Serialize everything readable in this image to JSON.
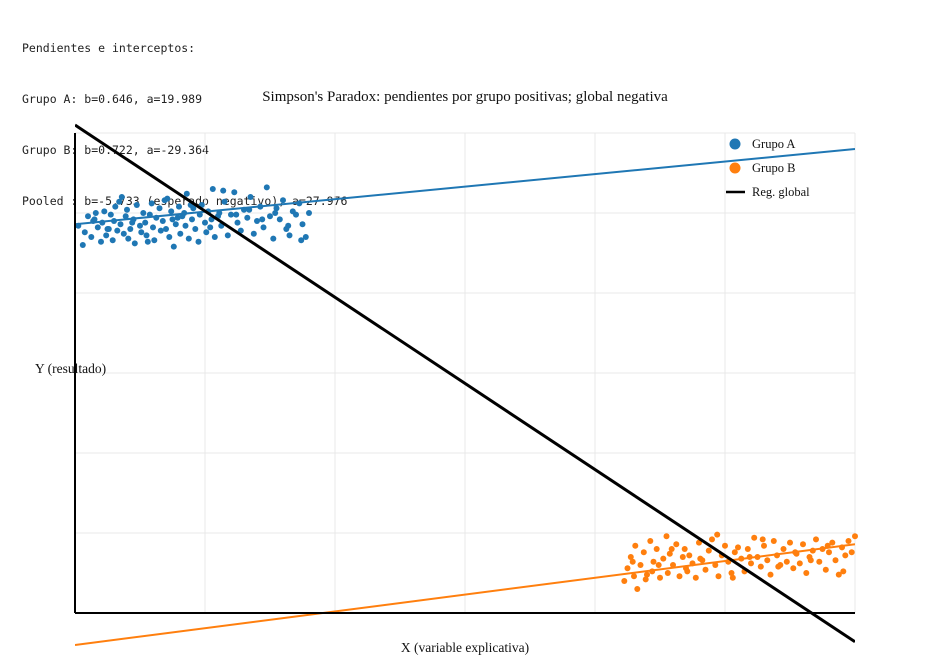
{
  "info": {
    "heading": "Pendientes e interceptos:",
    "lines": [
      "Grupo A: b=0.646, a=19.989",
      "Grupo B: b=0.722, a=-29.364",
      "Pooled : b=-5.733 (esperado negativo), a=27.976"
    ]
  },
  "chart_data": {
    "type": "scatter",
    "title": "Simpson's Paradox: pendientes por grupo positivas; global negativa",
    "xlabel": "X (variable explicativa)",
    "ylabel": "Y (resultado)",
    "xlim": [
      0,
      12
    ],
    "ylim": [
      -2,
      28
    ],
    "grid": true,
    "legend_position": "top-right",
    "tick_labels_shown": false,
    "colors": {
      "group_a": "#1f77b4",
      "group_b": "#ff7f0e",
      "global": "#000000"
    },
    "legend": [
      "Grupo A",
      "Grupo B",
      "Reg. global"
    ],
    "series": [
      {
        "name": "Grupo A",
        "kind": "points",
        "x": [
          0.05,
          0.15,
          0.2,
          0.25,
          0.3,
          0.32,
          0.35,
          0.4,
          0.42,
          0.45,
          0.48,
          0.5,
          0.55,
          0.58,
          0.6,
          0.62,
          0.65,
          0.7,
          0.72,
          0.75,
          0.78,
          0.8,
          0.82,
          0.85,
          0.9,
          0.92,
          0.95,
          1.0,
          1.02,
          1.05,
          1.08,
          1.1,
          1.15,
          1.18,
          1.2,
          1.22,
          1.25,
          1.3,
          1.32,
          1.35,
          1.38,
          1.4,
          1.45,
          1.48,
          1.5,
          1.52,
          1.55,
          1.6,
          1.62,
          1.65,
          1.68,
          1.7,
          1.72,
          1.75,
          1.8,
          1.82,
          1.85,
          1.9,
          1.92,
          1.95,
          2.0,
          2.02,
          2.05,
          2.1,
          2.12,
          2.15,
          2.2,
          2.22,
          2.25,
          2.3,
          2.35,
          2.4,
          2.45,
          2.5,
          2.55,
          2.6,
          2.65,
          2.7,
          2.75,
          2.8,
          2.85,
          2.9,
          2.95,
          3.0,
          3.05,
          3.1,
          3.15,
          3.2,
          3.25,
          3.3,
          3.35,
          3.4,
          3.45,
          3.5,
          3.55,
          3.6,
          0.12,
          0.28,
          0.52,
          0.68,
          0.88,
          1.12,
          1.42,
          1.58,
          1.78,
          2.08,
          2.28,
          2.48,
          2.68,
          2.88,
          3.08,
          3.28,
          3.48
        ],
        "y": [
          22.2,
          21.8,
          22.8,
          21.5,
          22.6,
          23.0,
          22.1,
          21.2,
          22.4,
          23.1,
          21.6,
          22.0,
          22.9,
          21.3,
          22.5,
          23.4,
          21.9,
          22.3,
          24.0,
          21.7,
          22.8,
          23.2,
          21.4,
          22.0,
          22.6,
          21.1,
          23.5,
          22.2,
          21.8,
          23.0,
          22.4,
          21.6,
          22.9,
          23.6,
          22.1,
          21.3,
          22.7,
          23.3,
          21.9,
          22.5,
          23.8,
          22.0,
          21.5,
          23.1,
          22.6,
          20.9,
          22.3,
          23.4,
          21.7,
          22.8,
          23.0,
          22.2,
          24.2,
          21.4,
          22.6,
          23.3,
          22.0,
          21.2,
          22.9,
          23.5,
          22.4,
          21.8,
          23.1,
          22.6,
          24.5,
          21.5,
          22.8,
          23.0,
          22.2,
          23.7,
          21.6,
          22.9,
          24.3,
          22.4,
          21.9,
          23.2,
          22.7,
          24.0,
          21.7,
          22.5,
          23.4,
          22.1,
          24.6,
          22.8,
          21.4,
          23.3,
          22.6,
          23.8,
          22.0,
          21.6,
          23.1,
          22.9,
          23.6,
          22.3,
          21.5,
          23.0,
          21.0,
          22.5,
          22.0,
          23.7,
          22.4,
          21.2,
          23.9,
          22.7,
          23.5,
          22.1,
          24.4,
          22.9,
          23.2,
          22.6,
          23.0,
          22.2,
          21.3
        ],
        "fit": {
          "slope": 0.646,
          "intercept": 19.989
        }
      },
      {
        "name": "Grupo B",
        "kind": "points",
        "x": [
          8.45,
          8.5,
          8.55,
          8.6,
          8.62,
          8.65,
          8.7,
          8.75,
          8.8,
          8.85,
          8.88,
          8.9,
          8.95,
          9.0,
          9.05,
          9.1,
          9.12,
          9.15,
          9.2,
          9.25,
          9.3,
          9.35,
          9.38,
          9.4,
          9.45,
          9.5,
          9.55,
          9.6,
          9.65,
          9.7,
          9.75,
          9.8,
          9.85,
          9.9,
          9.95,
          10.0,
          10.05,
          10.1,
          10.15,
          10.2,
          10.25,
          10.3,
          10.35,
          10.4,
          10.45,
          10.5,
          10.55,
          10.6,
          10.65,
          10.7,
          10.75,
          10.8,
          10.85,
          10.9,
          10.95,
          11.0,
          11.05,
          11.1,
          11.15,
          11.2,
          11.25,
          11.3,
          11.35,
          11.4,
          11.45,
          11.5,
          11.55,
          11.6,
          11.65,
          11.7,
          11.75,
          11.8,
          11.85,
          11.9,
          11.95,
          12.0,
          8.58,
          8.78,
          8.98,
          9.18,
          9.42,
          9.62,
          9.88,
          10.12,
          10.38,
          10.58,
          10.82,
          11.08,
          11.32,
          11.58,
          11.82
        ],
        "y": [
          0.0,
          0.8,
          1.5,
          0.3,
          2.2,
          -0.5,
          1.0,
          1.8,
          0.4,
          2.5,
          0.6,
          1.2,
          2.0,
          0.2,
          1.4,
          2.8,
          0.5,
          1.7,
          1.0,
          2.3,
          0.3,
          1.5,
          2.0,
          0.8,
          1.6,
          1.1,
          0.2,
          2.4,
          1.3,
          0.7,
          1.9,
          2.6,
          1.0,
          0.3,
          1.6,
          2.2,
          1.2,
          0.5,
          1.8,
          2.1,
          1.4,
          0.6,
          2.0,
          1.1,
          2.7,
          1.5,
          0.9,
          2.2,
          1.3,
          0.4,
          2.5,
          1.6,
          1.0,
          2.0,
          1.2,
          2.4,
          0.8,
          1.7,
          1.1,
          2.3,
          0.5,
          1.5,
          1.9,
          2.6,
          1.2,
          2.0,
          0.7,
          1.8,
          2.4,
          1.3,
          0.4,
          2.1,
          1.6,
          2.5,
          1.8,
          2.8,
          1.2,
          0.1,
          1.0,
          2.0,
          0.6,
          1.4,
          2.9,
          0.2,
          1.5,
          2.6,
          0.9,
          1.8,
          1.3,
          2.2,
          0.6
        ],
        "fit": {
          "slope": 0.722,
          "intercept": -29.364
        }
      },
      {
        "name": "Reg. global",
        "kind": "line",
        "fit": {
          "slope": -5.733,
          "intercept": 27.976
        }
      }
    ]
  }
}
